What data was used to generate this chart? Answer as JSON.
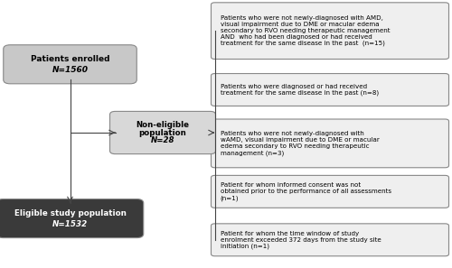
{
  "enrolled_label": "Patients enrolled",
  "enrolled_n": "N=1560",
  "non_eligible_label": "Non-eligible\npopulation",
  "non_eligible_n": "N=28",
  "eligible_label": "Eligible study population",
  "eligible_n": "N=1532",
  "reasons": [
    "Patients who were not newly-diagnosed with AMD,\nvisual impairment due to DME or macular edema\nsecondary to RVO needing therapeutic management\nAND  who had been diagnosed or had received\ntreatment for the same disease in the past  (n=15)",
    "Patients who were diagnosed or had received\ntreatment for the same disease in the past (n=8)",
    "Patients who were not newly-diagnosed with\nwAMD, visual impairment due to DME or macular\nedema secondary to RVO needing therapeutic\nmanagement (n=3)",
    "Patient for whom informed consent was not\nobtained prior to the performance of all assessments\n(n=1)",
    "Patient for whom the time window of study\nenrolment exceeded 372 days from the study site\ninitiation (n=1)"
  ],
  "box_enrolled_color": "#c8c8c8",
  "box_non_eligible_color": "#d8d8d8",
  "box_eligible_color": "#3a3a3a",
  "box_reason_color": "#efefef",
  "eligible_text_color": "#ffffff",
  "enrolled_text_color": "#000000",
  "non_eligible_text_color": "#000000",
  "reason_text_color": "#000000",
  "background_color": "#ffffff",
  "arrow_color": "#444444",
  "line_color": "#444444"
}
